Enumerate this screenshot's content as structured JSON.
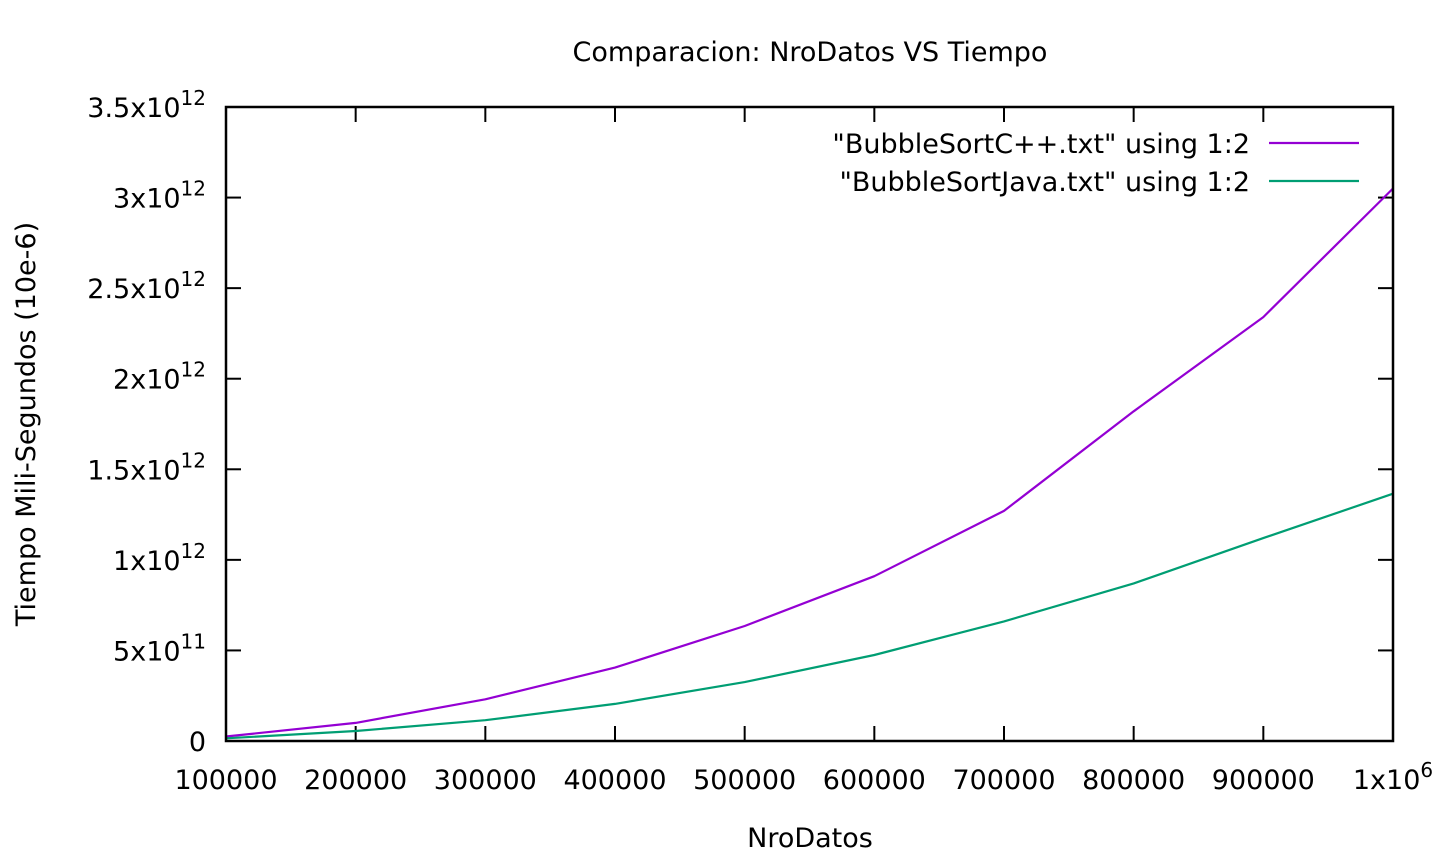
{
  "chart_data": {
    "type": "line",
    "title": "Comparacion: NroDatos VS Tiempo",
    "xlabel": "NroDatos",
    "ylabel": "Tiempo Mili-Segundos (10e-6)",
    "xlim": [
      100000,
      1000000
    ],
    "ylim": [
      0,
      3500000000000
    ],
    "x_ticks": [
      {
        "value": 100000,
        "label": "100000",
        "sup": ""
      },
      {
        "value": 200000,
        "label": "200000",
        "sup": ""
      },
      {
        "value": 300000,
        "label": "300000",
        "sup": ""
      },
      {
        "value": 400000,
        "label": "400000",
        "sup": ""
      },
      {
        "value": 500000,
        "label": "500000",
        "sup": ""
      },
      {
        "value": 600000,
        "label": "600000",
        "sup": ""
      },
      {
        "value": 700000,
        "label": "700000",
        "sup": ""
      },
      {
        "value": 800000,
        "label": "800000",
        "sup": ""
      },
      {
        "value": 900000,
        "label": "900000",
        "sup": ""
      },
      {
        "value": 1000000,
        "label": "1x10",
        "sup": "6"
      }
    ],
    "y_ticks": [
      {
        "value": 0,
        "label": "0",
        "sup": ""
      },
      {
        "value": 500000000000,
        "label": "5x10",
        "sup": "11"
      },
      {
        "value": 1000000000000,
        "label": "1x10",
        "sup": "12"
      },
      {
        "value": 1500000000000,
        "label": "1.5x10",
        "sup": "12"
      },
      {
        "value": 2000000000000,
        "label": "2x10",
        "sup": "12"
      },
      {
        "value": 2500000000000,
        "label": "2.5x10",
        "sup": "12"
      },
      {
        "value": 3000000000000,
        "label": "3x10",
        "sup": "12"
      },
      {
        "value": 3500000000000,
        "label": "3.5x10",
        "sup": "12"
      }
    ],
    "x": [
      100000,
      200000,
      300000,
      400000,
      500000,
      600000,
      700000,
      800000,
      900000,
      1000000
    ],
    "series": [
      {
        "name": "\"BubbleSortC++.txt\" using 1:2",
        "color": "#9400d3",
        "values": [
          25000000000,
          100000000000,
          230000000000,
          405000000000,
          635000000000,
          910000000000,
          1270000000000,
          1820000000000,
          2340000000000,
          3050000000000
        ]
      },
      {
        "name": "\"BubbleSortJava.txt\" using 1:2",
        "color": "#009e73",
        "values": [
          15000000000,
          55000000000,
          115000000000,
          205000000000,
          325000000000,
          475000000000,
          660000000000,
          870000000000,
          1120000000000,
          1365000000000
        ]
      }
    ],
    "grid": false,
    "legend_position": "top-right"
  }
}
